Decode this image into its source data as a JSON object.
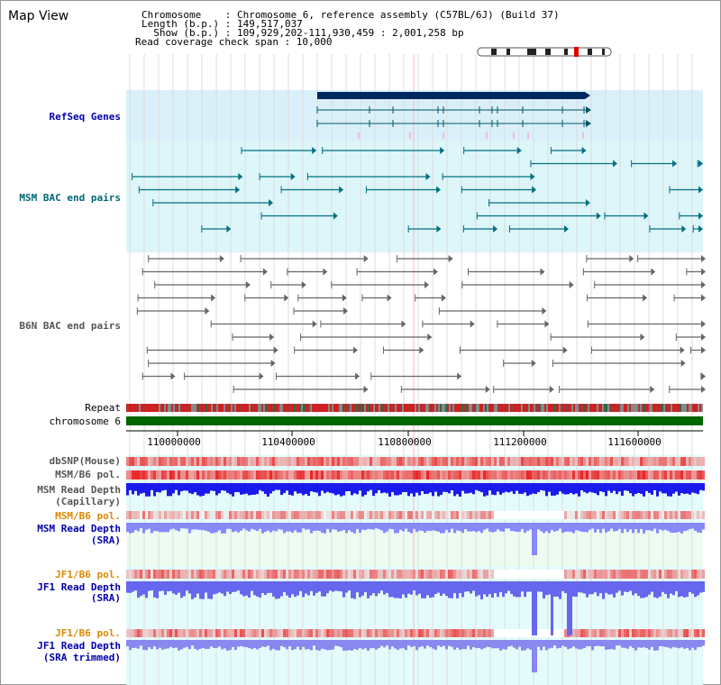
{
  "page": {
    "title": "Map View"
  },
  "info": {
    "chromosome_line": "Chromosome    : Chromosome 6, reference assembly (C57BL/6J) (Build 37)",
    "length_line": "Length (b.p.) : 149,517,037",
    "show_line": "  Show (b.p.) : 109,929,202-111,930,459 : 2,001,258 bp",
    "read_coverage_line": "Read coverage check span : 10,000"
  },
  "tracks": {
    "refseq": "RefSeq Genes",
    "msm_bac": "MSM BAC end pairs",
    "b6n_bac": "B6N BAC end pairs",
    "repeat": "Repeat",
    "chromosome": "chromosome 6",
    "dbsnp": "dbSNP(Mouse)",
    "msm_pol": "MSM/B6 pol.",
    "msm_depth_cap_1": "MSM Read Depth",
    "msm_depth_cap_2": "(Capillary)",
    "msm_pol_sra": "MSM/B6 pol.",
    "msm_depth_sra_1": "MSM Read Depth",
    "msm_depth_sra_2": "(SRA)",
    "jf1_pol": "JF1/B6 pol.",
    "jf1_depth_sra_1": "JF1 Read Depth",
    "jf1_depth_sra_2": "(SRA)",
    "jf1_pol_trim": "JF1/B6 pol.",
    "jf1_depth_trim_1": "JF1 Read Depth",
    "jf1_depth_trim_2": "(SRA trimmed)"
  },
  "axis_ticks": [
    "110000000",
    "110400000",
    "110800000",
    "111200000",
    "111600000"
  ],
  "colors": {
    "blue_label": "#0000aa",
    "teal_label": "#006677",
    "gray_label": "#555555",
    "orange_label": "#dd8800",
    "refseq_bg": "#d9f0fa",
    "msm_bg": "#ddf6fa",
    "lower_bg": "#e4fbfb",
    "chromosome": "#006600"
  }
}
